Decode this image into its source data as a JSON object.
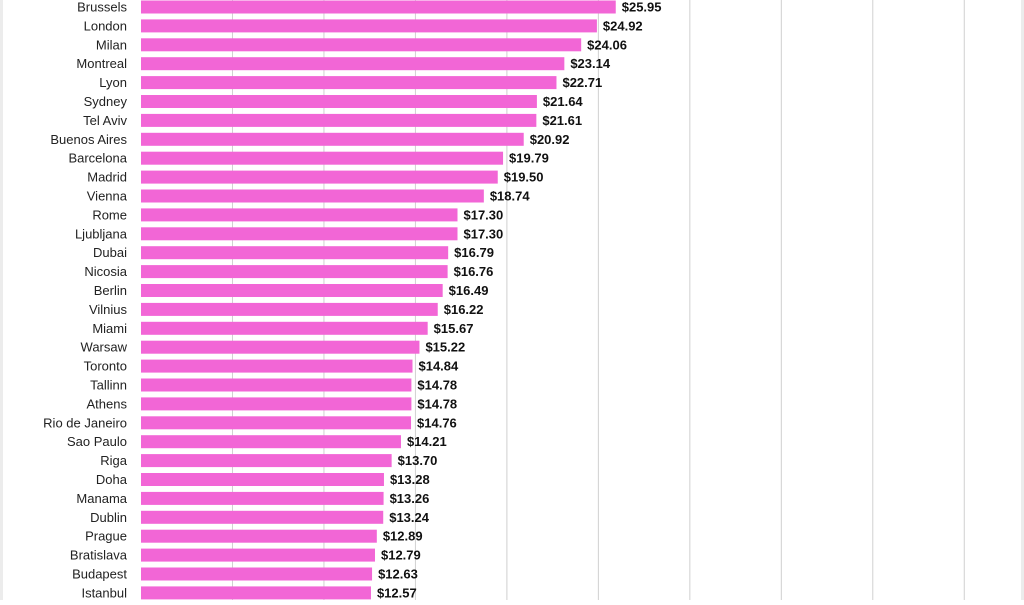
{
  "chart_data": {
    "type": "bar",
    "orientation": "horizontal",
    "title": "",
    "xlabel": "",
    "ylabel": "",
    "bar_color": "#f266d6",
    "grid_color": "#d0d0d0",
    "grid": true,
    "legend": "none",
    "xlim": [
      0,
      47.5
    ],
    "categories": [
      "Brussels",
      "London",
      "Milan",
      "Montreal",
      "Lyon",
      "Sydney",
      "Tel Aviv",
      "Buenos Aires",
      "Barcelona",
      "Madrid",
      "Vienna",
      "Rome",
      "Ljubljana",
      "Dubai",
      "Nicosia",
      "Berlin",
      "Vilnius",
      "Miami",
      "Warsaw",
      "Toronto",
      "Tallinn",
      "Athens",
      "Rio de Janeiro",
      "Sao Paulo",
      "Riga",
      "Doha",
      "Manama",
      "Dublin",
      "Prague",
      "Bratislava",
      "Budapest",
      "Istanbul"
    ],
    "values": [
      25.95,
      24.92,
      24.06,
      23.14,
      22.71,
      21.64,
      21.61,
      20.92,
      19.79,
      19.5,
      18.74,
      17.3,
      17.3,
      16.79,
      16.76,
      16.49,
      16.22,
      15.67,
      15.22,
      14.84,
      14.78,
      14.78,
      14.76,
      14.21,
      13.7,
      13.28,
      13.26,
      13.24,
      12.89,
      12.79,
      12.63,
      12.57
    ],
    "value_labels": [
      "$25.95",
      "$24.92",
      "$24.06",
      "$23.14",
      "$22.71",
      "$21.64",
      "$21.61",
      "$20.92",
      "$19.79",
      "$19.50",
      "$18.74",
      "$17.30",
      "$17.30",
      "$16.79",
      "$16.76",
      "$16.49",
      "$16.22",
      "$15.67",
      "$15.22",
      "$14.84",
      "$14.78",
      "$14.78",
      "$14.76",
      "$14.21",
      "$13.70",
      "$13.28",
      "$13.26",
      "$13.24",
      "$12.89",
      "$12.79",
      "$12.63",
      "$12.57"
    ]
  }
}
